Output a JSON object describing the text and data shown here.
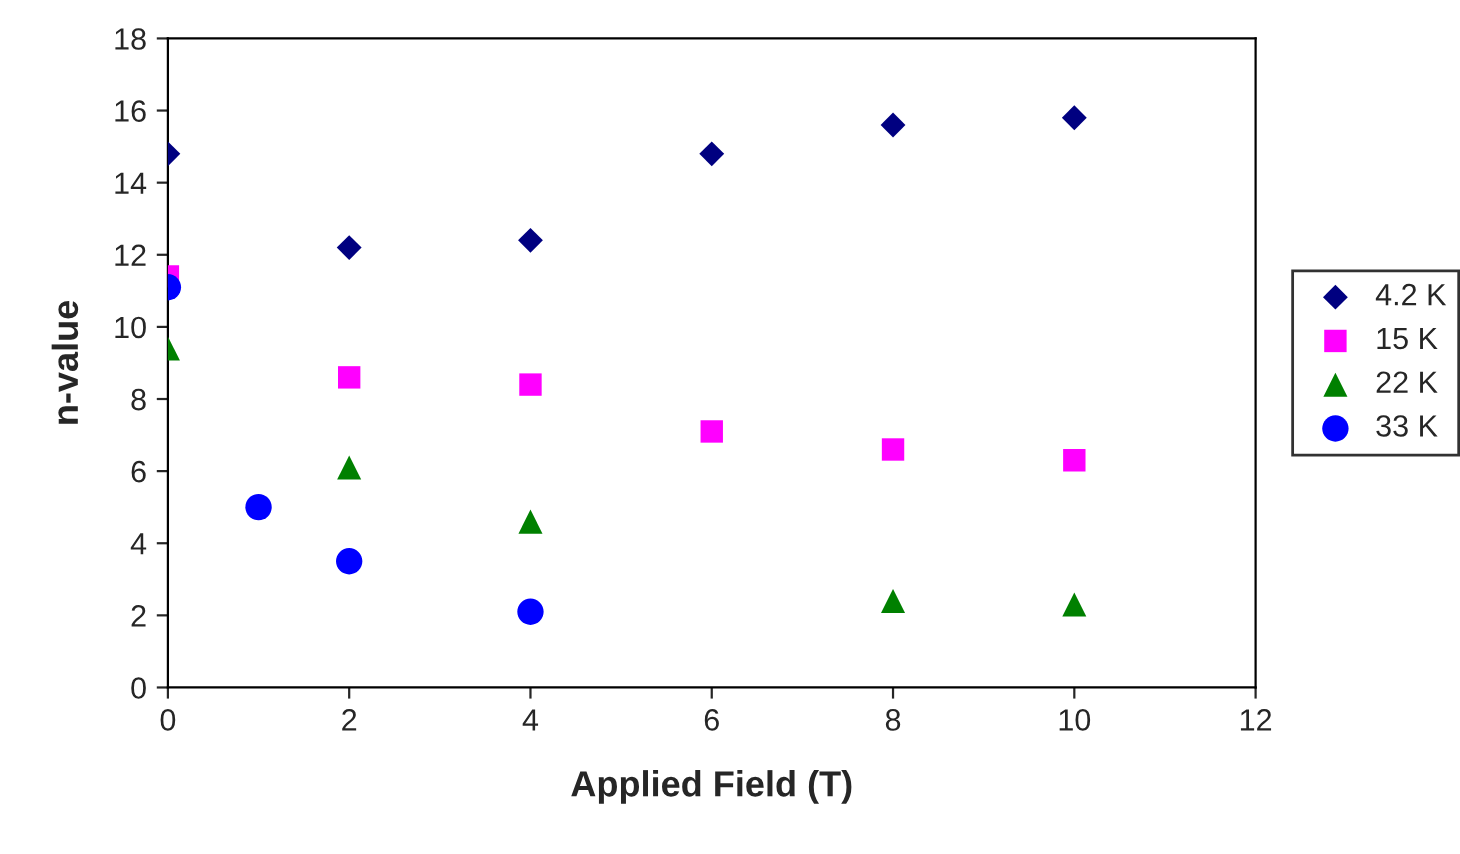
{
  "chart_data": {
    "type": "scatter",
    "xlabel": "Applied Field (T)",
    "ylabel": "n-value",
    "xlim": [
      0,
      12
    ],
    "xticks": [
      0,
      2,
      4,
      6,
      8,
      10,
      12
    ],
    "ylim": [
      0,
      18
    ],
    "yticks": [
      0,
      2,
      4,
      6,
      8,
      10,
      12,
      14,
      16,
      18
    ],
    "grid": false,
    "legend": "right",
    "series": [
      {
        "name": "4.2 K",
        "color": "#000080",
        "marker": "diamond",
        "x": [
          0,
          2,
          4,
          6,
          8,
          10
        ],
        "values": [
          14.8,
          12.2,
          12.4,
          14.8,
          15.6,
          15.8
        ]
      },
      {
        "name": "15 K",
        "color": "#ff00ff",
        "marker": "square",
        "x": [
          0,
          2,
          4,
          6,
          8,
          10
        ],
        "values": [
          11.4,
          8.6,
          8.4,
          7.1,
          6.6,
          6.3
        ]
      },
      {
        "name": "22 K",
        "color": "#008000",
        "marker": "triangle",
        "x": [
          0,
          2,
          4,
          8,
          10
        ],
        "values": [
          9.4,
          6.1,
          4.6,
          2.4,
          2.3
        ]
      },
      {
        "name": "33 K",
        "color": "#0000ff",
        "marker": "circle",
        "x": [
          0,
          1,
          2,
          4
        ],
        "values": [
          11.1,
          5.0,
          3.5,
          2.1
        ]
      }
    ]
  }
}
